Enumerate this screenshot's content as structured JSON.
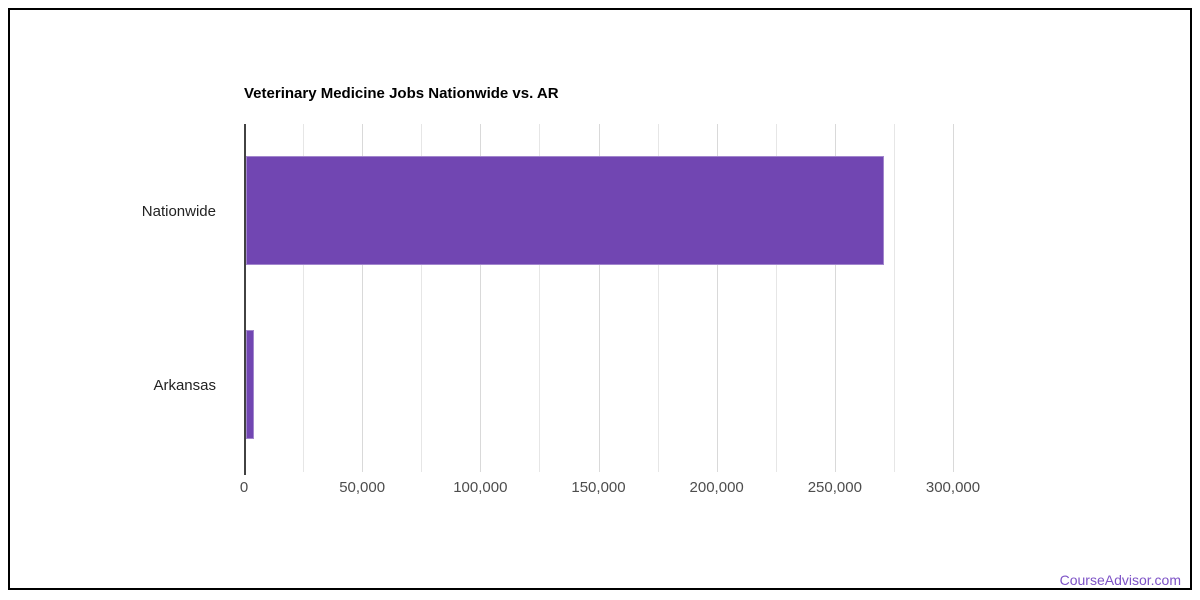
{
  "chart_data": {
    "type": "bar",
    "orientation": "horizontal",
    "title": "Veterinary Medicine Jobs Nationwide vs. AR",
    "categories": [
      "Nationwide",
      "Arkansas"
    ],
    "values": [
      270000,
      3400
    ],
    "xlabel": "",
    "ylabel": "",
    "xlim": [
      0,
      300000
    ],
    "x_tick_values": [
      0,
      50000,
      100000,
      150000,
      200000,
      250000,
      300000
    ],
    "x_tick_labels": [
      "0",
      "50,000",
      "100,000",
      "150,000",
      "200,000",
      "250,000",
      "300,000"
    ],
    "x_minor_gridline_step": 25000,
    "grid": true,
    "legend_position": "none",
    "bar_color": "#7146b2",
    "axis_line_color": "#424242",
    "gridline_color": "#e6e6e6"
  },
  "watermark": {
    "text": "CourseAdvisor.com",
    "color": "#7d52c6"
  }
}
